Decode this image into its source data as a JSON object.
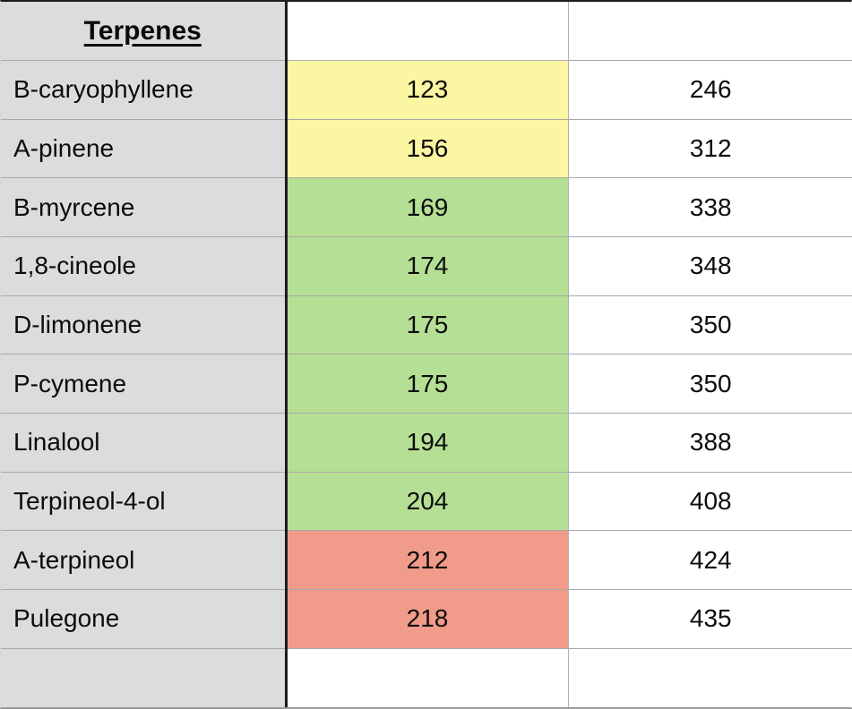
{
  "table": {
    "header_title": "Terpenes",
    "rows": [
      {
        "name": "B-caryophyllene",
        "value": "123",
        "double": "246",
        "band": "yellow"
      },
      {
        "name": "A-pinene",
        "value": "156",
        "double": "312",
        "band": "yellow"
      },
      {
        "name": "B-myrcene",
        "value": "169",
        "double": "338",
        "band": "green"
      },
      {
        "name": "1,8-cineole",
        "value": "174",
        "double": "348",
        "band": "green"
      },
      {
        "name": "D-limonene",
        "value": "175",
        "double": "350",
        "band": "green"
      },
      {
        "name": "P-cymene",
        "value": "175",
        "double": "350",
        "band": "green"
      },
      {
        "name": "Linalool",
        "value": "194",
        "double": "388",
        "band": "green"
      },
      {
        "name": "Terpineol-4-ol",
        "value": "204",
        "double": "408",
        "band": "green"
      },
      {
        "name": "A-terpineol",
        "value": "212",
        "double": "424",
        "band": "red"
      },
      {
        "name": "Pulegone",
        "value": "218",
        "double": "435",
        "band": "red"
      }
    ],
    "colors": {
      "band_yellow": "#fbf6a2",
      "band_green": "#b5df95",
      "band_red": "#f19b8a",
      "row_header_gray": "#dcdcdc",
      "thick_border": "#1c1c1c",
      "thin_border": "#a9a9a9"
    }
  }
}
